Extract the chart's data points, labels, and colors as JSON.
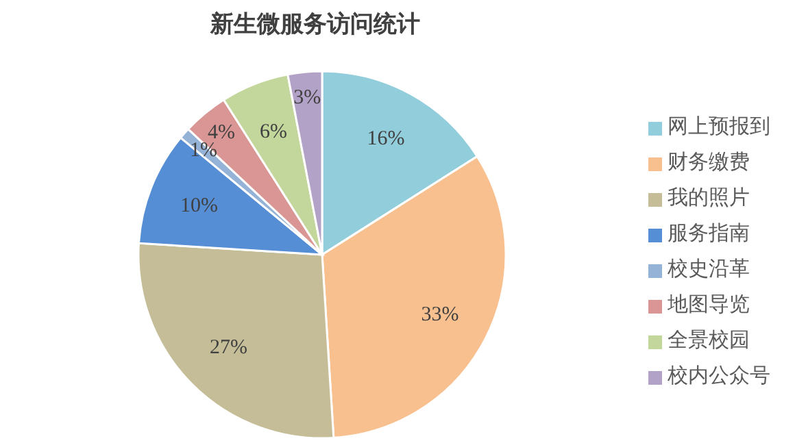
{
  "chart_data": {
    "type": "pie",
    "title": "新生微服务访问统计",
    "categories": [
      "网上预报到",
      "财务缴费",
      "我的照片",
      "服务指南",
      "校史沿革",
      "地图导览",
      "全景校园",
      "校内公众号"
    ],
    "values": [
      16,
      33,
      27,
      10,
      1,
      4,
      6,
      3
    ],
    "value_labels": [
      "16%",
      "33%",
      "27%",
      "10%",
      "1%",
      "4%",
      "6%",
      "3%"
    ],
    "colors": [
      "#92cddc",
      "#f9c08f",
      "#c4bd97",
      "#558ed5",
      "#95b3d7",
      "#d99694",
      "#c3d69b",
      "#b3a2c7"
    ],
    "legend": "right"
  }
}
